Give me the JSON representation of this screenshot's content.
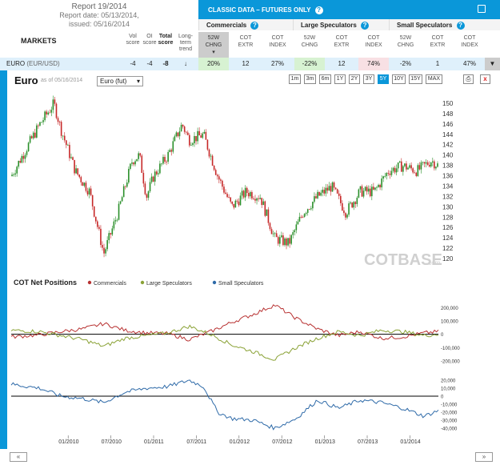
{
  "report": {
    "title": "Report 19/2014",
    "date": "Report date: 05/13/2014,",
    "issued": "issued: 05/16/2014"
  },
  "markets_label": "MARKETS",
  "score_headers": [
    {
      "l1": "Vol",
      "l2": "score"
    },
    {
      "l1": "OI",
      "l2": "score"
    },
    {
      "l1": "Total",
      "l2": "score"
    },
    {
      "l1": "Long-",
      "l2": "term",
      "l3": "trend"
    }
  ],
  "classic_title": "CLASSIC DATA – FUTURES ONLY",
  "groups": [
    "Commercials",
    "Large Speculators",
    "Small Speculators"
  ],
  "col_headers": [
    {
      "l1": "52W",
      "l2": "CHNG"
    },
    {
      "l1": "COT",
      "l2": "EXTR"
    },
    {
      "l1": "COT",
      "l2": "INDEX"
    },
    {
      "l1": "52W",
      "l2": "CHNG"
    },
    {
      "l1": "COT",
      "l2": "EXTR"
    },
    {
      "l1": "COT",
      "l2": "INDEX"
    },
    {
      "l1": "52W",
      "l2": "CHNG"
    },
    {
      "l1": "COT",
      "l2": "EXTR"
    },
    {
      "l1": "COT",
      "l2": "INDEX"
    }
  ],
  "row": {
    "market": "EURO",
    "sub": "(EUR/USD)",
    "vol": "-4",
    "oi": "-4",
    "total": "-8",
    "trend": "↓",
    "values": [
      "20%",
      "12",
      "27%",
      "-22%",
      "12",
      "74%",
      "-2%",
      "1",
      "47%"
    ]
  },
  "chart_head": {
    "title": "Euro",
    "asof": "as of 05/16/2014",
    "select": "Euro (fut)"
  },
  "timeframes": [
    "1m",
    "3m",
    "6m",
    "1Y",
    "2Y",
    "3Y",
    "5Y",
    "10Y",
    "15Y",
    "MAX"
  ],
  "active_timeframe": "5Y",
  "watermark": {
    "a": "COT",
    "b": "BASE",
    "c": ".com"
  },
  "nav": {
    "prev": "«",
    "next": "»"
  },
  "chart_data": [
    {
      "type": "candlestick",
      "title": "Euro",
      "y_ticks": [
        120,
        122,
        124,
        126,
        128,
        130,
        132,
        134,
        136,
        138,
        140,
        142,
        144,
        146,
        148,
        150
      ],
      "ylim": [
        119,
        151
      ],
      "x_ticks": [
        "01/2010",
        "07/2010",
        "01/2011",
        "07/2011",
        "01/2012",
        "07/2012",
        "01/2013",
        "07/2013",
        "01/2014"
      ],
      "x_range": [
        "2009-05",
        "2014-05"
      ],
      "price_path": [
        [
          "2009-05",
          136
        ],
        [
          "2009-07",
          141
        ],
        [
          "2009-09",
          146
        ],
        [
          "2009-11",
          150
        ],
        [
          "2009-12",
          145
        ],
        [
          "2010-02",
          137
        ],
        [
          "2010-04",
          133
        ],
        [
          "2010-06",
          121
        ],
        [
          "2010-08",
          129
        ],
        [
          "2010-10",
          139
        ],
        [
          "2010-11",
          140
        ],
        [
          "2010-12",
          132
        ],
        [
          "2011-01",
          136
        ],
        [
          "2011-03",
          140
        ],
        [
          "2011-05",
          146
        ],
        [
          "2011-06",
          143
        ],
        [
          "2011-08",
          144
        ],
        [
          "2011-10",
          136
        ],
        [
          "2011-12",
          130
        ],
        [
          "2012-02",
          133
        ],
        [
          "2012-04",
          132
        ],
        [
          "2012-06",
          124
        ],
        [
          "2012-08",
          123
        ],
        [
          "2012-10",
          129
        ],
        [
          "2012-12",
          132
        ],
        [
          "2013-02",
          134
        ],
        [
          "2013-04",
          129
        ],
        [
          "2013-06",
          133
        ],
        [
          "2013-08",
          133
        ],
        [
          "2013-10",
          137
        ],
        [
          "2013-12",
          138
        ],
        [
          "2014-02",
          137
        ],
        [
          "2014-04",
          139
        ],
        [
          "2014-05",
          138
        ]
      ],
      "up_color": "#2a8f2a",
      "down_color": "#c62828"
    },
    {
      "type": "line",
      "title": "COT Net Positions",
      "series": [
        {
          "name": "Commercials",
          "color": "#b83232"
        },
        {
          "name": "Large Speculators",
          "color": "#8aa236"
        },
        {
          "name": "Small Speculators",
          "color": "#2e6aa8"
        }
      ],
      "y_ticks_top": [
        -200000,
        -100000,
        0,
        100000,
        200000
      ],
      "y_ticks_top_labels": [
        "-200,000",
        "-100,000",
        "0",
        "100,000",
        "200,000"
      ],
      "ylim_top": [
        -230000,
        250000
      ],
      "y_ticks_bottom": [
        -40000,
        -30000,
        -20000,
        -10000,
        0,
        10000,
        20000
      ],
      "y_ticks_bottom_labels": [
        "-40,000",
        "-30,000",
        "-20,000",
        "-10,000",
        "0",
        "10,000",
        "20,000"
      ],
      "ylim_bottom": [
        -45000,
        25000
      ],
      "commercials": [
        [
          "2009-05",
          -20000
        ],
        [
          "2009-09",
          -5000
        ],
        [
          "2009-12",
          20000
        ],
        [
          "2010-03",
          40000
        ],
        [
          "2010-06",
          80000
        ],
        [
          "2010-09",
          30000
        ],
        [
          "2010-12",
          10000
        ],
        [
          "2011-03",
          5000
        ],
        [
          "2011-06",
          -40000
        ],
        [
          "2011-09",
          20000
        ],
        [
          "2011-12",
          90000
        ],
        [
          "2012-03",
          150000
        ],
        [
          "2012-06",
          220000
        ],
        [
          "2012-09",
          120000
        ],
        [
          "2012-12",
          40000
        ],
        [
          "2013-03",
          -10000
        ],
        [
          "2013-06",
          20000
        ],
        [
          "2013-09",
          -30000
        ],
        [
          "2013-12",
          -20000
        ],
        [
          "2014-03",
          10000
        ],
        [
          "2014-05",
          20000
        ]
      ],
      "large_speculators": [
        [
          "2009-05",
          30000
        ],
        [
          "2009-09",
          20000
        ],
        [
          "2009-12",
          -10000
        ],
        [
          "2010-03",
          -40000
        ],
        [
          "2010-06",
          -90000
        ],
        [
          "2010-09",
          -30000
        ],
        [
          "2010-12",
          -10000
        ],
        [
          "2011-03",
          10000
        ],
        [
          "2011-06",
          60000
        ],
        [
          "2011-09",
          0
        ],
        [
          "2011-12",
          -80000
        ],
        [
          "2012-03",
          -130000
        ],
        [
          "2012-06",
          -190000
        ],
        [
          "2012-09",
          -100000
        ],
        [
          "2012-12",
          -30000
        ],
        [
          "2013-03",
          20000
        ],
        [
          "2013-06",
          -10000
        ],
        [
          "2013-09",
          30000
        ],
        [
          "2013-12",
          20000
        ],
        [
          "2014-03",
          -10000
        ],
        [
          "2014-05",
          0
        ]
      ],
      "small_speculators": [
        [
          "2009-05",
          15000
        ],
        [
          "2009-09",
          10000
        ],
        [
          "2009-12",
          0
        ],
        [
          "2010-03",
          -3000
        ],
        [
          "2010-06",
          -8000
        ],
        [
          "2010-09",
          5000
        ],
        [
          "2010-12",
          10000
        ],
        [
          "2011-03",
          12000
        ],
        [
          "2011-06",
          20000
        ],
        [
          "2011-08",
          12000
        ],
        [
          "2011-10",
          -20000
        ],
        [
          "2011-12",
          -28000
        ],
        [
          "2012-03",
          -30000
        ],
        [
          "2012-06",
          -40000
        ],
        [
          "2012-09",
          -28000
        ],
        [
          "2012-12",
          -5000
        ],
        [
          "2013-03",
          -15000
        ],
        [
          "2013-06",
          -5000
        ],
        [
          "2013-09",
          -8000
        ],
        [
          "2013-12",
          -15000
        ],
        [
          "2014-03",
          -25000
        ],
        [
          "2014-05",
          -18000
        ]
      ]
    }
  ]
}
